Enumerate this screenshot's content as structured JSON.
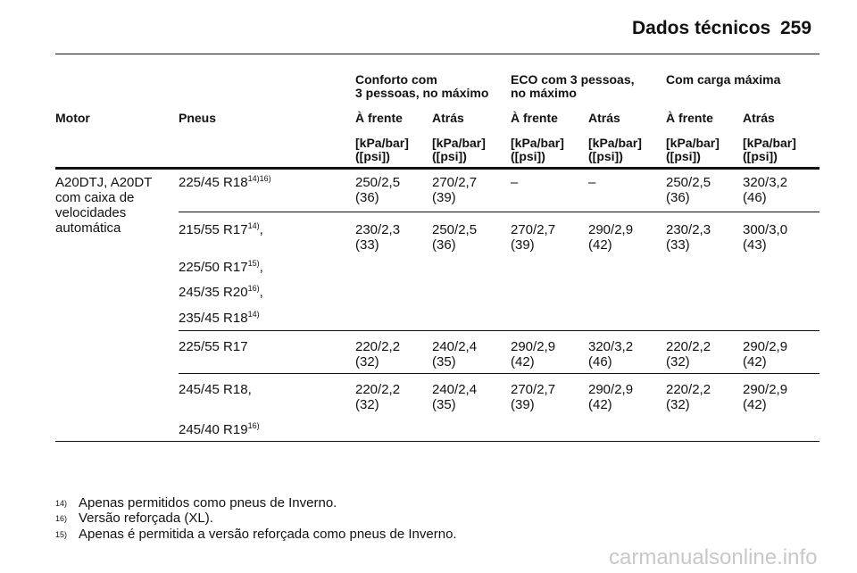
{
  "header": {
    "title": "Dados técnicos",
    "page": "259"
  },
  "table": {
    "groups": [
      [
        "Conforto com",
        "3 pessoas, no máximo"
      ],
      [
        "ECO com 3 pessoas,",
        "no máximo"
      ],
      [
        "Com carga máxima"
      ]
    ],
    "columns": [
      "Motor",
      "Pneus",
      "À frente",
      "Atrás",
      "À frente",
      "Atrás",
      "À frente",
      "Atrás"
    ],
    "units": [
      [
        "[kPa/bar]",
        "([psi])"
      ],
      [
        "[kPa/bar]",
        "([psi])"
      ],
      [
        "[kPa/bar]",
        "([psi])"
      ],
      [
        "[kPa/bar]",
        "([psi])"
      ],
      [
        "[kPa/bar]",
        "([psi])"
      ],
      [
        "[kPa/bar]",
        "([psi])"
      ]
    ],
    "motor": [
      "A20DTJ, A20DT",
      "com caixa de",
      "velocidades",
      "automática"
    ],
    "rows": [
      {
        "tires": [
          {
            "text": "225/45 R18",
            "sup": "14)16)"
          }
        ],
        "cells": [
          [
            "250/2,5",
            "(36)"
          ],
          [
            "270/2,7",
            "(39)"
          ],
          [
            "–"
          ],
          [
            "–"
          ],
          [
            "250/2,5",
            "(36)"
          ],
          [
            "320/3,2",
            "(46)"
          ]
        ]
      },
      {
        "tires": [
          {
            "text": "215/55 R17",
            "sup": "14)",
            "suffix": ","
          },
          {
            "text": "225/50 R17",
            "sup": "15)",
            "suffix": ","
          },
          {
            "text": "245/35 R20",
            "sup": "16)",
            "suffix": ","
          },
          {
            "text": "235/45 R18",
            "sup": "14)"
          }
        ],
        "cells": [
          [
            "230/2,3",
            "(33)"
          ],
          [
            "250/2,5",
            "(36)"
          ],
          [
            "270/2,7",
            "(39)"
          ],
          [
            "290/2,9",
            "(42)"
          ],
          [
            "230/2,3",
            "(33)"
          ],
          [
            "300/3,0",
            "(43)"
          ]
        ]
      },
      {
        "tires": [
          {
            "text": "225/55 R17"
          }
        ],
        "cells": [
          [
            "220/2,2",
            "(32)"
          ],
          [
            "240/2,4",
            "(35)"
          ],
          [
            "290/2,9",
            "(42)"
          ],
          [
            "320/3,2",
            "(46)"
          ],
          [
            "220/2,2",
            "(32)"
          ],
          [
            "290/2,9",
            "(42)"
          ]
        ]
      },
      {
        "tires": [
          {
            "text": "245/45 R18,"
          },
          {
            "text": "245/40 R19",
            "sup": "16)"
          }
        ],
        "cells": [
          [
            "220/2,2",
            "(32)"
          ],
          [
            "240/2,4",
            "(35)"
          ],
          [
            "270/2,7",
            "(39)"
          ],
          [
            "290/2,9",
            "(42)"
          ],
          [
            "220/2,2",
            "(32)"
          ],
          [
            "290/2,9",
            "(42)"
          ]
        ]
      }
    ]
  },
  "footnotes": [
    {
      "mark": "14)",
      "text": "Apenas permitidos como pneus de Inverno."
    },
    {
      "mark": "16)",
      "text": "Versão reforçada (XL)."
    },
    {
      "mark": "15)",
      "text": "Apenas é permitida a versão reforçada como pneus de Inverno."
    }
  ],
  "watermark": "carmanualsonline.info"
}
